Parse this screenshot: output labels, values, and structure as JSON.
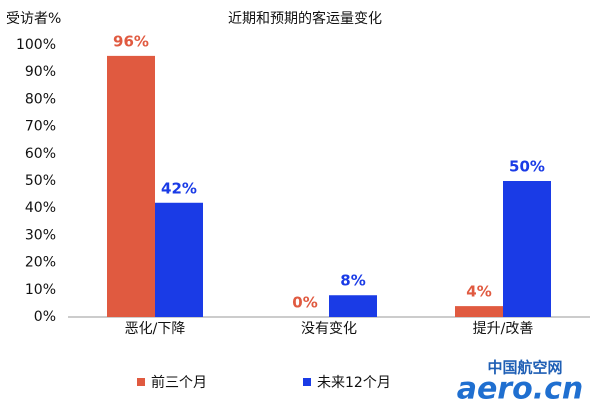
{
  "chart_data": {
    "type": "bar",
    "title": "近期和预期的客运量变化",
    "y_label": "受访者%",
    "categories": [
      "恶化/下降",
      "没有变化",
      "提升/改善"
    ],
    "series": [
      {
        "name": "前三个月",
        "color": "#e05a40",
        "values": [
          96,
          0,
          4
        ],
        "value_labels": [
          "96%",
          "0%",
          "4%"
        ]
      },
      {
        "name": "未来12个月",
        "color": "#1a3be6",
        "values": [
          42,
          8,
          50
        ],
        "value_labels": [
          "42%",
          "8%",
          "50%"
        ]
      }
    ],
    "ylim": [
      0,
      100
    ],
    "yticks": [
      {
        "value": 0,
        "label": "0%"
      },
      {
        "value": 10,
        "label": "10%"
      },
      {
        "value": 20,
        "label": "20%"
      },
      {
        "value": 30,
        "label": "30%"
      },
      {
        "value": 40,
        "label": "40%"
      },
      {
        "value": 50,
        "label": "50%"
      },
      {
        "value": 60,
        "label": "60%"
      },
      {
        "value": 70,
        "label": "70%"
      },
      {
        "value": 80,
        "label": "80%"
      },
      {
        "value": 90,
        "label": "90%"
      },
      {
        "value": 100,
        "label": "100%"
      }
    ],
    "grid": false,
    "legend": "bottom"
  },
  "watermark": {
    "line1": "中国航空网",
    "line2": "aero.cn"
  }
}
